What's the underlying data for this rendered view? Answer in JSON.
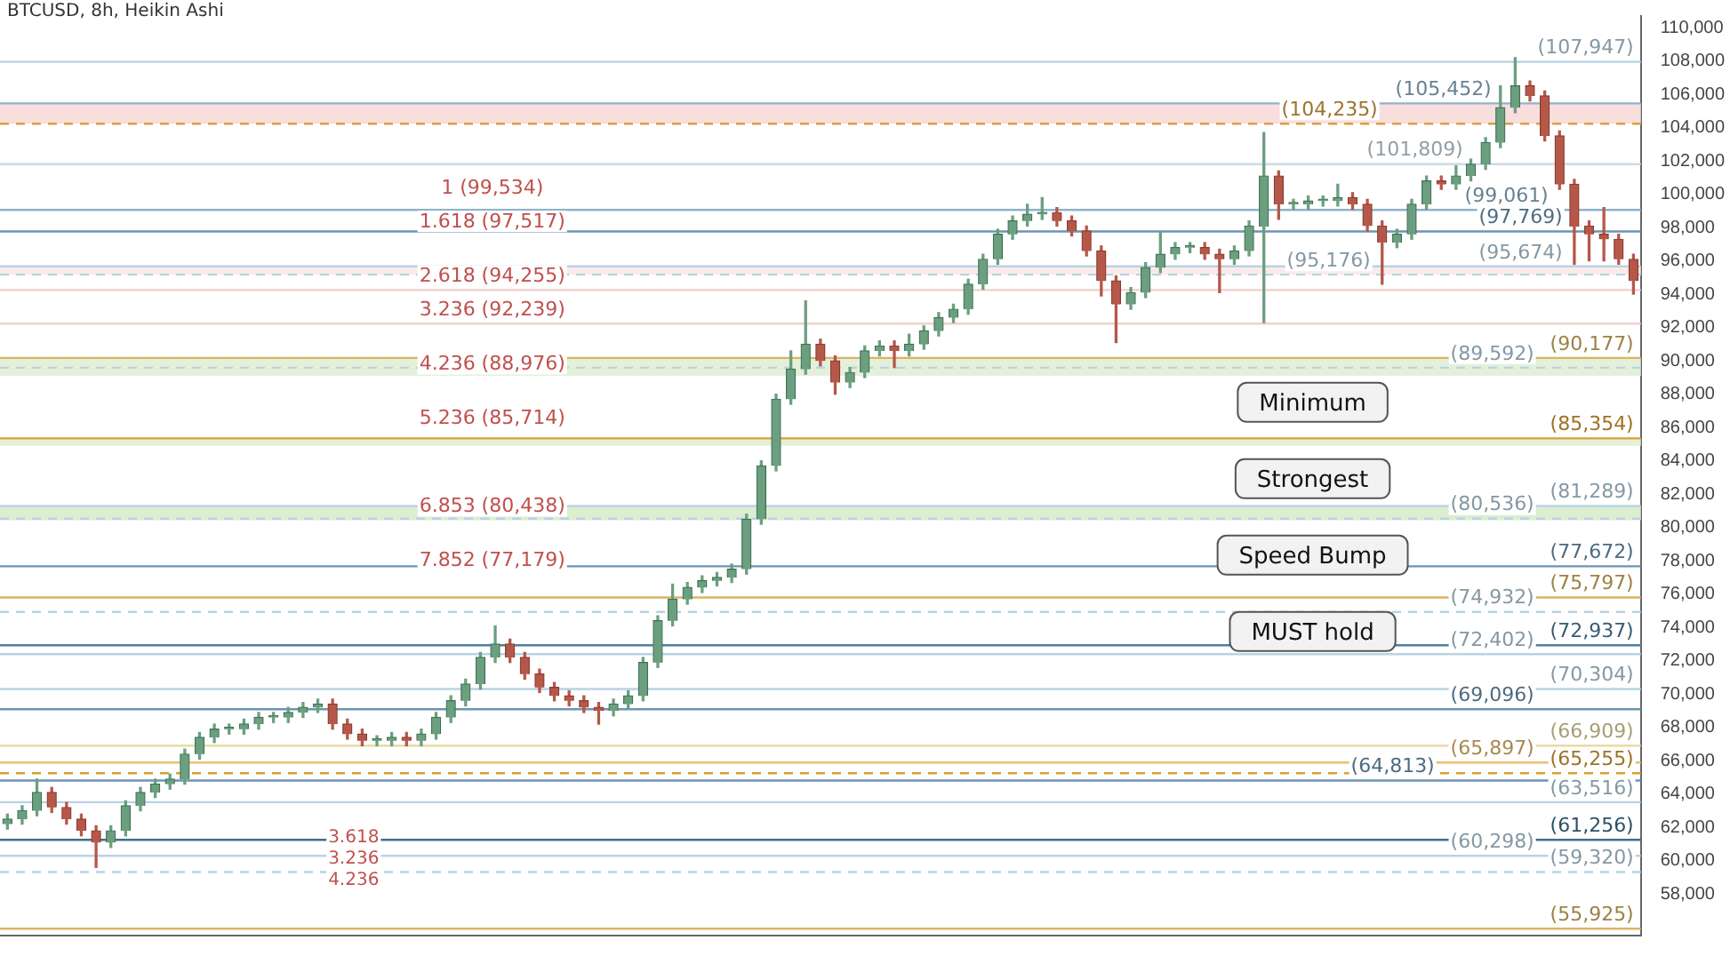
{
  "chart_data": {
    "type": "candlestick",
    "title": "BTCUSD, 8h, Heikin Ashi",
    "categories": [
      null,
      null,
      null,
      null,
      null,
      null,
      null,
      null,
      null,
      null,
      null,
      null,
      null,
      null,
      null,
      null,
      null,
      null,
      null,
      null,
      null,
      null,
      null,
      null,
      null,
      null,
      null,
      null,
      null,
      null,
      null,
      null,
      null,
      null,
      null,
      null,
      null,
      null,
      null,
      null,
      null,
      null,
      null,
      null,
      null,
      null,
      null,
      null,
      null,
      null,
      null,
      null,
      null,
      null,
      null,
      null,
      null,
      null,
      null,
      null,
      null,
      null,
      null,
      null,
      null,
      null,
      null,
      null,
      null,
      null,
      null,
      null,
      null,
      null,
      null,
      null,
      null,
      null,
      null,
      null,
      null,
      null,
      null,
      null,
      null,
      null,
      null,
      null,
      null,
      null,
      null,
      null,
      null,
      null,
      null,
      null,
      null,
      null,
      null,
      null,
      null,
      null,
      null,
      null,
      null,
      null,
      null,
      null,
      null,
      null,
      null
    ],
    "ohlc": [
      [
        62200,
        62800,
        61900,
        62500
      ],
      [
        62500,
        63300,
        62200,
        63000
      ],
      [
        63000,
        64900,
        62700,
        64100
      ],
      [
        64100,
        64400,
        62900,
        63200
      ],
      [
        63200,
        63500,
        62200,
        62500
      ],
      [
        62500,
        62800,
        61500,
        61800
      ],
      [
        61800,
        62100,
        59600,
        61100
      ],
      [
        61100,
        62100,
        60800,
        61800
      ],
      [
        61800,
        63600,
        61500,
        63300
      ],
      [
        63300,
        64400,
        63000,
        64100
      ],
      [
        64100,
        64900,
        63800,
        64600
      ],
      [
        64600,
        65200,
        64300,
        64900
      ],
      [
        64900,
        66700,
        64600,
        66400
      ],
      [
        66400,
        67700,
        66100,
        67400
      ],
      [
        67400,
        68200,
        67100,
        67900
      ],
      [
        67900,
        68200,
        67600,
        67900
      ],
      [
        67900,
        68500,
        67600,
        68200
      ],
      [
        68200,
        68900,
        67900,
        68600
      ],
      [
        68600,
        68900,
        68300,
        68600
      ],
      [
        68600,
        69200,
        68300,
        68900
      ],
      [
        68900,
        69500,
        68600,
        69200
      ],
      [
        69200,
        69700,
        68900,
        69400
      ],
      [
        69400,
        69700,
        67900,
        68200
      ],
      [
        68200,
        68500,
        67300,
        67600
      ],
      [
        67600,
        67900,
        66900,
        67200
      ],
      [
        67200,
        67500,
        66900,
        67200
      ],
      [
        67200,
        67700,
        66900,
        67400
      ],
      [
        67400,
        67700,
        66900,
        67200
      ],
      [
        67200,
        67900,
        66900,
        67600
      ],
      [
        67600,
        68900,
        67300,
        68600
      ],
      [
        68600,
        69900,
        68300,
        69600
      ],
      [
        69600,
        70900,
        69300,
        70600
      ],
      [
        70600,
        72500,
        70300,
        72200
      ],
      [
        72200,
        74100,
        71900,
        73000
      ],
      [
        73000,
        73300,
        71900,
        72200
      ],
      [
        72200,
        72500,
        70900,
        71200
      ],
      [
        71200,
        71500,
        70100,
        70400
      ],
      [
        70400,
        70700,
        69600,
        69900
      ],
      [
        69900,
        70200,
        69300,
        69600
      ],
      [
        69600,
        69900,
        68900,
        69200
      ],
      [
        69200,
        69500,
        68200,
        69000
      ],
      [
        69000,
        69700,
        68700,
        69400
      ],
      [
        69400,
        70200,
        69100,
        69900
      ],
      [
        69900,
        72200,
        69600,
        71900
      ],
      [
        71900,
        74700,
        71600,
        74400
      ],
      [
        74400,
        76600,
        74100,
        75700
      ],
      [
        75700,
        76700,
        75400,
        76400
      ],
      [
        76400,
        77100,
        76100,
        76800
      ],
      [
        76800,
        77300,
        76500,
        77000
      ],
      [
        77000,
        77800,
        76700,
        77500
      ],
      [
        77500,
        80800,
        77200,
        80500
      ],
      [
        80500,
        84000,
        80200,
        83700
      ],
      [
        83700,
        88000,
        83400,
        87700
      ],
      [
        87700,
        90600,
        87400,
        89500
      ],
      [
        89500,
        93600,
        89200,
        91000
      ],
      [
        91000,
        91300,
        89700,
        90000
      ],
      [
        90000,
        90300,
        88000,
        88700
      ],
      [
        88700,
        89600,
        88400,
        89300
      ],
      [
        89300,
        90900,
        89000,
        90600
      ],
      [
        90600,
        91200,
        90300,
        90900
      ],
      [
        90900,
        91200,
        89600,
        90600
      ],
      [
        90600,
        91600,
        90300,
        91000
      ],
      [
        91000,
        92100,
        90700,
        91800
      ],
      [
        91800,
        92900,
        91500,
        92600
      ],
      [
        92600,
        93400,
        92300,
        93100
      ],
      [
        93100,
        94900,
        92800,
        94600
      ],
      [
        94600,
        96400,
        94300,
        96100
      ],
      [
        96100,
        97900,
        95800,
        97600
      ],
      [
        97600,
        98700,
        97300,
        98400
      ],
      [
        98400,
        99400,
        98100,
        98800
      ],
      [
        98800,
        99800,
        98500,
        98900
      ],
      [
        98900,
        99200,
        98100,
        98400
      ],
      [
        98400,
        98700,
        97500,
        97800
      ],
      [
        97800,
        98100,
        96300,
        96600
      ],
      [
        96600,
        96900,
        93900,
        94800
      ],
      [
        94800,
        95100,
        91100,
        93400
      ],
      [
        93400,
        94400,
        93100,
        94100
      ],
      [
        94100,
        95900,
        93800,
        95600
      ],
      [
        95600,
        97700,
        95300,
        96400
      ],
      [
        96400,
        97100,
        96100,
        96800
      ],
      [
        96800,
        97100,
        96500,
        96800
      ],
      [
        96800,
        97100,
        96100,
        96400
      ],
      [
        96400,
        96700,
        94100,
        96100
      ],
      [
        96100,
        96900,
        95800,
        96600
      ],
      [
        96600,
        98400,
        96300,
        98100
      ],
      [
        98100,
        103700,
        92300,
        101100
      ],
      [
        101100,
        101400,
        98500,
        99400
      ],
      [
        99400,
        99700,
        99100,
        99400
      ],
      [
        99400,
        99900,
        99100,
        99600
      ],
      [
        99600,
        99900,
        99300,
        99600
      ],
      [
        99600,
        100600,
        99300,
        99800
      ],
      [
        99800,
        100100,
        99100,
        99400
      ],
      [
        99400,
        99700,
        97800,
        98100
      ],
      [
        98100,
        98400,
        94600,
        97100
      ],
      [
        97100,
        97900,
        96800,
        97600
      ],
      [
        97600,
        99700,
        97300,
        99400
      ],
      [
        99400,
        101100,
        99100,
        100800
      ],
      [
        100800,
        101100,
        100300,
        100600
      ],
      [
        100600,
        101700,
        100300,
        101100
      ],
      [
        101100,
        102100,
        100800,
        101800
      ],
      [
        101800,
        103400,
        101500,
        103100
      ],
      [
        103100,
        106500,
        102800,
        105200
      ],
      [
        105200,
        108200,
        104900,
        106500
      ],
      [
        106500,
        106800,
        105600,
        105900
      ],
      [
        105900,
        106200,
        103200,
        103500
      ],
      [
        103500,
        103800,
        100300,
        100600
      ],
      [
        100600,
        100900,
        95800,
        98100
      ],
      [
        98100,
        98400,
        96000,
        97600
      ],
      [
        97600,
        99200,
        96000,
        97300
      ],
      [
        97300,
        97600,
        95800,
        96100
      ],
      [
        96100,
        96400,
        94000,
        94800
      ]
    ],
    "ylim": [
      55500,
      110700
    ],
    "yticks": [
      {
        "value": 58000,
        "label": "58,000"
      },
      {
        "value": 60000,
        "label": "60,000"
      },
      {
        "value": 62000,
        "label": "62,000"
      },
      {
        "value": 64000,
        "label": "64,000"
      },
      {
        "value": 66000,
        "label": "66,000"
      },
      {
        "value": 68000,
        "label": "68,000"
      },
      {
        "value": 70000,
        "label": "70,000"
      },
      {
        "value": 72000,
        "label": "72,000"
      },
      {
        "value": 74000,
        "label": "74,000"
      },
      {
        "value": 76000,
        "label": "76,000"
      },
      {
        "value": 78000,
        "label": "78,000"
      },
      {
        "value": 80000,
        "label": "80,000"
      },
      {
        "value": 82000,
        "label": "82,000"
      },
      {
        "value": 84000,
        "label": "84,000"
      },
      {
        "value": 86000,
        "label": "86,000"
      },
      {
        "value": 88000,
        "label": "88,000"
      },
      {
        "value": 90000,
        "label": "90,000"
      },
      {
        "value": 92000,
        "label": "92,000"
      },
      {
        "value": 94000,
        "label": "94,000"
      },
      {
        "value": 96000,
        "label": "96,000"
      },
      {
        "value": 98000,
        "label": "98,000"
      },
      {
        "value": 100000,
        "label": "100,000"
      },
      {
        "value": 102000,
        "label": "102,000"
      },
      {
        "value": 104000,
        "label": "104,000"
      },
      {
        "value": 106000,
        "label": "106,000"
      },
      {
        "value": 108000,
        "label": "108,000"
      },
      {
        "value": 110000,
        "label": "110,000"
      }
    ],
    "grid": false,
    "legend": false,
    "bands": [
      {
        "axis": "y",
        "from": 104235,
        "to": 105452,
        "color": "#f9dede"
      },
      {
        "axis": "y",
        "from": 95176,
        "to": 95674,
        "color": "#fbeaea"
      },
      {
        "axis": "y",
        "from": 89100,
        "to": 90177,
        "color": "#e4f0da"
      },
      {
        "axis": "y",
        "from": 84900,
        "to": 85354,
        "color": "#e4f0da"
      },
      {
        "axis": "y",
        "from": 80438,
        "to": 81289,
        "color": "#dcedd0"
      }
    ],
    "ref_lines": [
      {
        "axis": "y",
        "value": 107947,
        "label": "(107,947)",
        "color": "#b7d3e3"
      },
      {
        "axis": "y",
        "value": 105452,
        "label": "(105,452)",
        "color": "#8fb3c9"
      },
      {
        "axis": "y",
        "value": 104235,
        "label": "(104,235)",
        "color": "#d9a040",
        "line_style": "dashed"
      },
      {
        "axis": "y",
        "value": 101809,
        "label": "(101,809)",
        "color": "#c9dce8"
      },
      {
        "axis": "y",
        "value": 99061,
        "label": "(99,061)",
        "color": "#8fb3c9"
      },
      {
        "axis": "y",
        "value": 97769,
        "label": "(97,769)",
        "color": "#6b95b2"
      },
      {
        "axis": "y",
        "value": 95674,
        "label": "(95,674)",
        "color": "#b7d3e3"
      },
      {
        "axis": "y",
        "value": 95176,
        "label": "(95,176)",
        "color": "#b7d3e3",
        "line_style": "dashed"
      },
      {
        "axis": "y",
        "value": 94255,
        "color": "#f0d0cc"
      },
      {
        "axis": "y",
        "value": 92239,
        "color": "#f0d0cc"
      },
      {
        "axis": "y",
        "value": 90177,
        "label": "(90,177)",
        "color": "#d9b560"
      },
      {
        "axis": "y",
        "value": 89592,
        "label": "(89,592)",
        "color": "#b7d3e3",
        "line_style": "dashed"
      },
      {
        "axis": "y",
        "value": 85354,
        "label": "(85,354)",
        "color": "#d9a030"
      },
      {
        "axis": "y",
        "value": 81289,
        "label": "(81,289)",
        "color": "#b7d3e3"
      },
      {
        "axis": "y",
        "value": 80536,
        "label": "(80,536)",
        "color": "#b7d3e3",
        "line_style": "dashed"
      },
      {
        "axis": "y",
        "value": 77672,
        "label": "(77,672)",
        "color": "#6b95b2"
      },
      {
        "axis": "y",
        "value": 75797,
        "label": "(75,797)",
        "color": "#d9b560"
      },
      {
        "axis": "y",
        "value": 74932,
        "label": "(74,932)",
        "color": "#b7d3e3",
        "line_style": "dashed"
      },
      {
        "axis": "y",
        "value": 72937,
        "label": "(72,937)",
        "color": "#4f7f9f"
      },
      {
        "axis": "y",
        "value": 72402,
        "label": "(72,402)",
        "color": "#b7d3e3"
      },
      {
        "axis": "y",
        "value": 70304,
        "label": "(70,304)",
        "color": "#b7d3e3"
      },
      {
        "axis": "y",
        "value": 69096,
        "label": "(69,096)",
        "color": "#6b95b2"
      },
      {
        "axis": "y",
        "value": 66909,
        "label": "(66,909)",
        "color": "#eadaa5"
      },
      {
        "axis": "y",
        "value": 65897,
        "label": "(65,897)",
        "color": "#e8c070"
      },
      {
        "axis": "y",
        "value": 65255,
        "label": "(65,255)",
        "color": "#d9a030",
        "line_style": "dashed"
      },
      {
        "axis": "y",
        "value": 64813,
        "label": "(64,813)",
        "color": "#6b95b2"
      },
      {
        "axis": "y",
        "value": 63516,
        "label": "(63,516)",
        "color": "#b7d3e3"
      },
      {
        "axis": "y",
        "value": 61256,
        "label": "(61,256)",
        "color": "#3f6f8f"
      },
      {
        "axis": "y",
        "value": 60298,
        "label": "(60,298)",
        "color": "#b7d3e3"
      },
      {
        "axis": "y",
        "value": 59320,
        "label": "(59,320)",
        "color": "#b7d3e3",
        "line_style": "dashed"
      },
      {
        "axis": "y",
        "value": 55925,
        "label": "(55,925)",
        "color": "#d9b560"
      }
    ],
    "annotations": [
      {
        "text": "1 (99,534)",
        "y": 99534
      },
      {
        "text": "1.618 (97,517)",
        "y": 97517
      },
      {
        "text": "2.618 (94,255)",
        "y": 94255
      },
      {
        "text": "3.236 (92,239)",
        "y": 92239
      },
      {
        "text": "4.236 (88,976)",
        "y": 88976
      },
      {
        "text": "5.236 (85,714)",
        "y": 85714
      },
      {
        "text": "6.853 (80,438)",
        "y": 80438
      },
      {
        "text": "7.852 (77,179)",
        "y": 77179
      },
      "3.618",
      "3.236",
      "4.236",
      {
        "text": "Minimum"
      },
      {
        "text": "Strongest"
      },
      {
        "text": "Speed Bump"
      },
      {
        "text": "MUST hold"
      }
    ]
  }
}
